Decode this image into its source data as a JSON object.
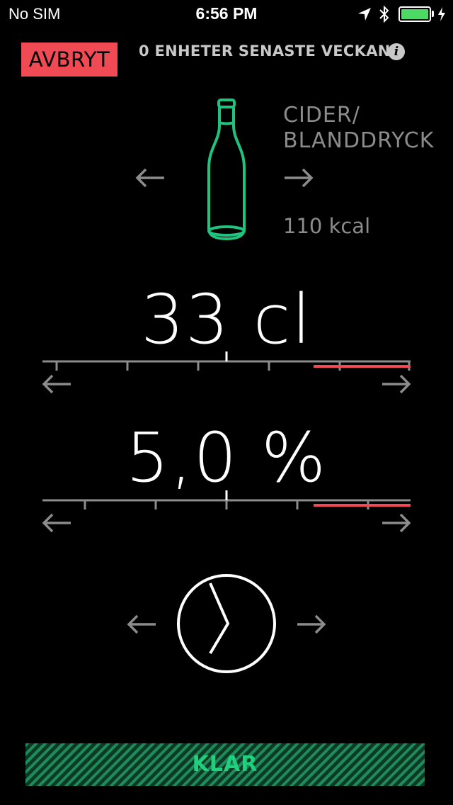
{
  "status_bar": {
    "carrier": "No SIM",
    "time": "6:56 PM",
    "battery_color": "#4cd964"
  },
  "header": {
    "cancel_label": "AVBRYT",
    "units_text": "0 ENHETER SENASTE VECKAN",
    "info_icon": "info-icon",
    "info_glyph": "i"
  },
  "drink": {
    "name_line1": "CIDER/",
    "name_line2": "BLANDDRYCK",
    "kcal": "110 kcal",
    "icon": "bottle-icon",
    "accent_color": "#1fc27f"
  },
  "volume": {
    "value": "33 cl",
    "warning_color": "#f04a55"
  },
  "strength": {
    "value": "5,0 %"
  },
  "time_picker": {
    "icon": "clock-icon"
  },
  "footer": {
    "done_label": "KLAR"
  }
}
